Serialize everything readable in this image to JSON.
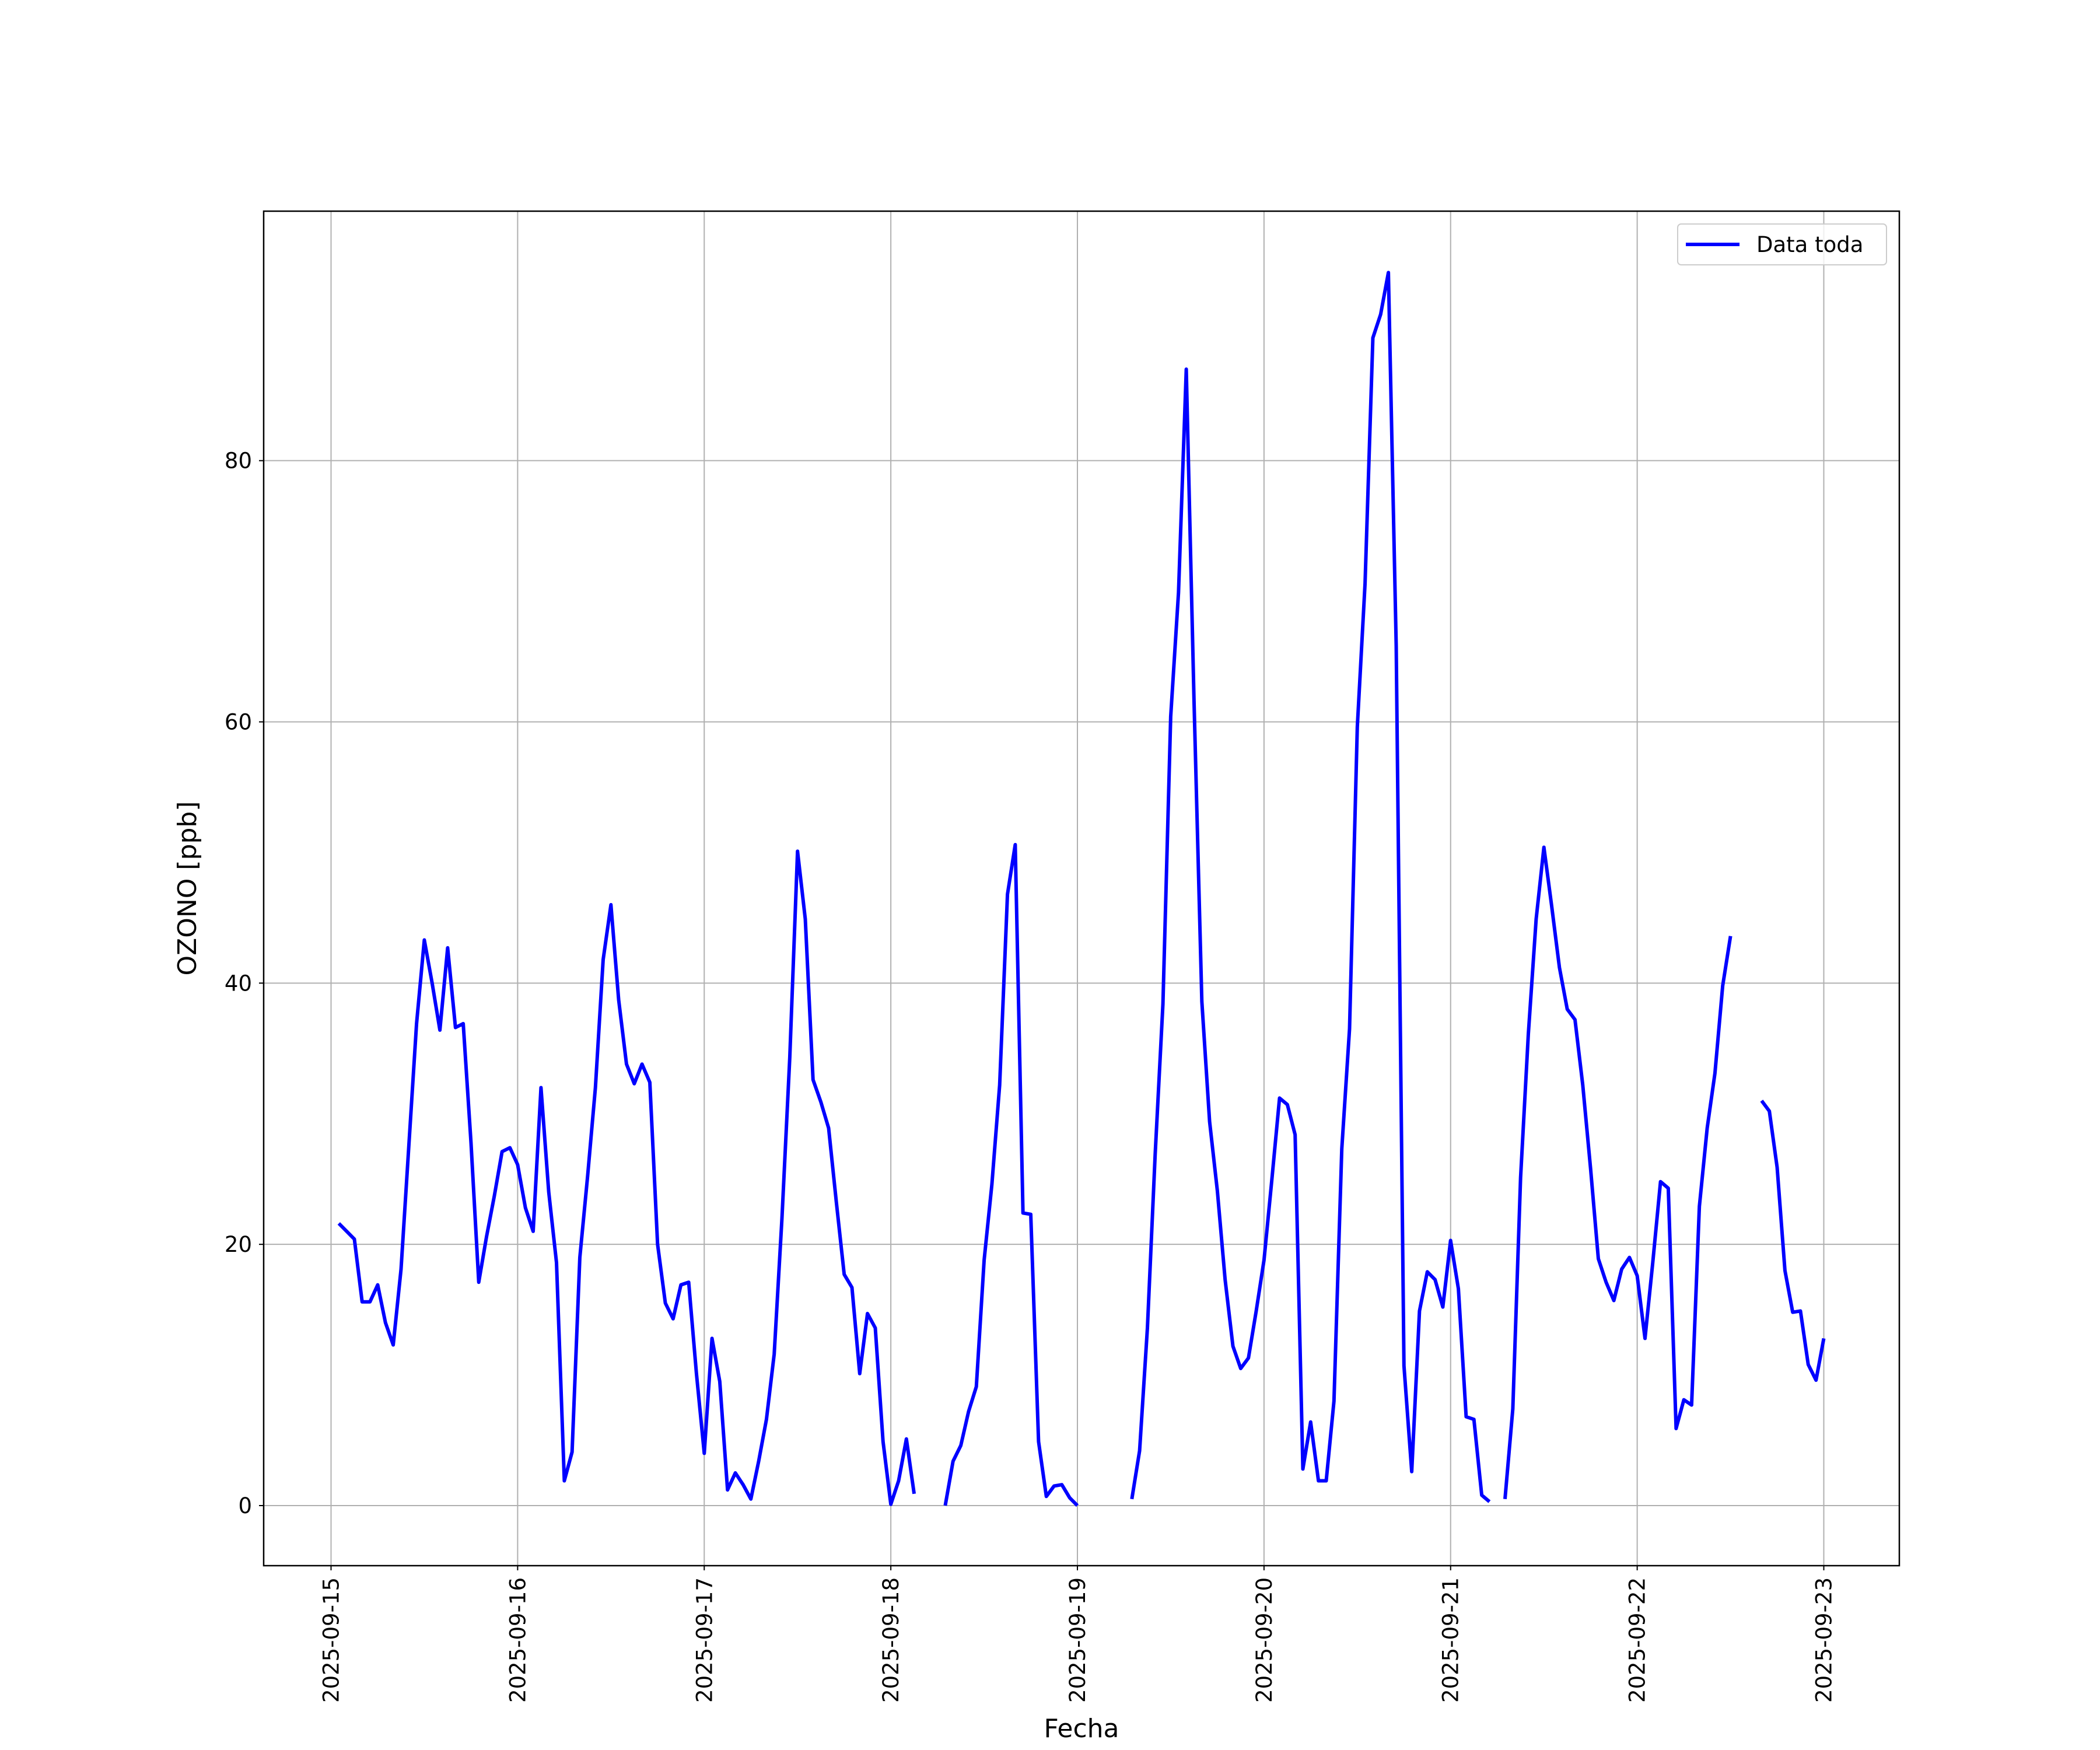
{
  "chart_data": {
    "type": "line",
    "xlabel": "Fecha",
    "ylabel": "OZONO [ppb]",
    "grid": true,
    "legend": "upper right",
    "xlim": [
      "2025-09-14 15:20",
      "2025-09-23 09:43"
    ],
    "xticks": [
      "2025-09-15",
      "2025-09-16",
      "2025-09-17",
      "2025-09-18",
      "2025-09-19",
      "2025-09-20",
      "2025-09-21",
      "2025-09-22",
      "2025-09-23"
    ],
    "ylim": [
      -4.6,
      99.1
    ],
    "yticks": [
      0,
      20,
      40,
      60,
      80
    ],
    "x": [
      "2025-09-15 01:00",
      "2025-09-15 02:00",
      "2025-09-15 03:00",
      "2025-09-15 04:00",
      "2025-09-15 05:00",
      "2025-09-15 06:00",
      "2025-09-15 07:00",
      "2025-09-15 08:00",
      "2025-09-15 09:00",
      "2025-09-15 10:00",
      "2025-09-15 11:00",
      "2025-09-15 12:00",
      "2025-09-15 13:00",
      "2025-09-15 14:00",
      "2025-09-15 15:00",
      "2025-09-15 16:00",
      "2025-09-15 17:00",
      "2025-09-15 18:00",
      "2025-09-15 19:00",
      "2025-09-15 20:00",
      "2025-09-15 21:00",
      "2025-09-15 22:00",
      "2025-09-15 23:00",
      "2025-09-16 00:00",
      "2025-09-16 01:00",
      "2025-09-16 02:00",
      "2025-09-16 03:00",
      "2025-09-16 04:00",
      "2025-09-16 05:00",
      "2025-09-16 06:00",
      "2025-09-16 07:00",
      "2025-09-16 08:00",
      "2025-09-16 09:00",
      "2025-09-16 10:00",
      "2025-09-16 11:00",
      "2025-09-16 12:00",
      "2025-09-16 13:00",
      "2025-09-16 14:00",
      "2025-09-16 15:00",
      "2025-09-16 16:00",
      "2025-09-16 17:00",
      "2025-09-16 18:00",
      "2025-09-16 19:00",
      "2025-09-16 20:00",
      "2025-09-16 21:00",
      "2025-09-16 22:00",
      "2025-09-16 23:00",
      "2025-09-17 00:00",
      "2025-09-17 01:00",
      "2025-09-17 02:00",
      "2025-09-17 03:00",
      "2025-09-17 04:00",
      "2025-09-17 05:00",
      "2025-09-17 06:00",
      "2025-09-17 07:00",
      "2025-09-17 08:00",
      "2025-09-17 09:00",
      "2025-09-17 10:00",
      "2025-09-17 11:00",
      "2025-09-17 12:00",
      "2025-09-17 13:00",
      "2025-09-17 14:00",
      "2025-09-17 15:00",
      "2025-09-17 16:00",
      "2025-09-17 17:00",
      "2025-09-17 18:00",
      "2025-09-17 19:00",
      "2025-09-17 20:00",
      "2025-09-17 21:00",
      "2025-09-17 22:00",
      "2025-09-17 23:00",
      "2025-09-18 00:00",
      "2025-09-18 01:00",
      "2025-09-18 02:00",
      "2025-09-18 03:00",
      "2025-09-18 04:00",
      "2025-09-18 05:00",
      "2025-09-18 06:00",
      "2025-09-18 07:00",
      "2025-09-18 08:00",
      "2025-09-18 09:00",
      "2025-09-18 10:00",
      "2025-09-18 11:00",
      "2025-09-18 12:00",
      "2025-09-18 13:00",
      "2025-09-18 14:00",
      "2025-09-18 15:00",
      "2025-09-18 16:00",
      "2025-09-18 17:00",
      "2025-09-18 18:00",
      "2025-09-18 19:00",
      "2025-09-18 20:00",
      "2025-09-18 21:00",
      "2025-09-18 22:00",
      "2025-09-18 23:00",
      "2025-09-19 00:00",
      "2025-09-19 01:00",
      "2025-09-19 02:00",
      "2025-09-19 03:00",
      "2025-09-19 04:00",
      "2025-09-19 05:00",
      "2025-09-19 06:00",
      "2025-09-19 07:00",
      "2025-09-19 08:00",
      "2025-09-19 09:00",
      "2025-09-19 10:00",
      "2025-09-19 11:00",
      "2025-09-19 12:00",
      "2025-09-19 13:00",
      "2025-09-19 14:00",
      "2025-09-19 15:00",
      "2025-09-19 16:00",
      "2025-09-19 17:00",
      "2025-09-19 18:00",
      "2025-09-19 19:00",
      "2025-09-19 20:00",
      "2025-09-19 21:00",
      "2025-09-19 22:00",
      "2025-09-19 23:00",
      "2025-09-20 00:00",
      "2025-09-20 01:00",
      "2025-09-20 02:00",
      "2025-09-20 03:00",
      "2025-09-20 04:00",
      "2025-09-20 05:00",
      "2025-09-20 06:00",
      "2025-09-20 07:00",
      "2025-09-20 08:00",
      "2025-09-20 09:00",
      "2025-09-20 10:00",
      "2025-09-20 11:00",
      "2025-09-20 12:00",
      "2025-09-20 13:00",
      "2025-09-20 14:00",
      "2025-09-20 15:00",
      "2025-09-20 16:00",
      "2025-09-20 17:00",
      "2025-09-20 18:00",
      "2025-09-20 19:00",
      "2025-09-20 20:00",
      "2025-09-20 21:00",
      "2025-09-20 22:00",
      "2025-09-20 23:00",
      "2025-09-21 00:00",
      "2025-09-21 01:00",
      "2025-09-21 02:00",
      "2025-09-21 03:00",
      "2025-09-21 04:00",
      "2025-09-21 05:00",
      "2025-09-21 06:00",
      "2025-09-21 07:00",
      "2025-09-21 08:00",
      "2025-09-21 09:00",
      "2025-09-21 10:00",
      "2025-09-21 11:00",
      "2025-09-21 12:00",
      "2025-09-21 13:00",
      "2025-09-21 14:00",
      "2025-09-21 15:00",
      "2025-09-21 16:00",
      "2025-09-21 17:00",
      "2025-09-21 18:00",
      "2025-09-21 19:00",
      "2025-09-21 20:00",
      "2025-09-21 21:00",
      "2025-09-21 22:00",
      "2025-09-21 23:00",
      "2025-09-22 00:00",
      "2025-09-22 01:00",
      "2025-09-22 02:00",
      "2025-09-22 03:00",
      "2025-09-22 04:00",
      "2025-09-22 05:00",
      "2025-09-22 06:00",
      "2025-09-22 07:00",
      "2025-09-22 08:00",
      "2025-09-22 09:00",
      "2025-09-22 10:00",
      "2025-09-22 11:00",
      "2025-09-22 12:00",
      "2025-09-22 13:00",
      "2025-09-22 14:00",
      "2025-09-22 15:00",
      "2025-09-22 16:00",
      "2025-09-22 17:00",
      "2025-09-22 18:00",
      "2025-09-22 19:00",
      "2025-09-22 20:00",
      "2025-09-22 21:00",
      "2025-09-22 22:00",
      "2025-09-22 23:00",
      "2025-09-23 00:00"
    ],
    "series": [
      {
        "name": "Data toda",
        "color": "#0000ff",
        "values": [
          21.6,
          21.0,
          20.4,
          15.6,
          15.6,
          16.9,
          14.0,
          12.3,
          18.1,
          27.5,
          36.9,
          43.3,
          40.0,
          36.4,
          42.7,
          36.6,
          36.9,
          27.8,
          17.1,
          20.6,
          23.7,
          27.1,
          27.4,
          26.1,
          22.8,
          21.0,
          32.0,
          24.0,
          18.6,
          1.9,
          4.1,
          19.0,
          25.2,
          32.0,
          41.8,
          46.0,
          38.7,
          33.8,
          32.3,
          33.8,
          32.4,
          20.0,
          15.5,
          14.3,
          16.9,
          17.1,
          10.1,
          4.0,
          12.8,
          9.5,
          1.2,
          2.5,
          1.6,
          0.5,
          3.4,
          6.6,
          11.6,
          22.0,
          34.3,
          50.1,
          44.9,
          32.6,
          30.9,
          28.9,
          23.2,
          17.7,
          16.7,
          10.1,
          14.7,
          13.6,
          4.9,
          0.1,
          1.9,
          5.1,
          0.9,
          null,
          null,
          null,
          0.0,
          3.4,
          4.6,
          7.2,
          9.1,
          18.8,
          24.6,
          32.2,
          46.8,
          50.6,
          22.4,
          22.3,
          4.9,
          0.7,
          1.5,
          1.6,
          0.6,
          0.0,
          null,
          null,
          null,
          null,
          null,
          null,
          0.5,
          4.2,
          13.6,
          26.9,
          38.4,
          60.4,
          69.9,
          87.0,
          61.6,
          38.6,
          29.4,
          24.1,
          17.3,
          12.2,
          10.5,
          11.3,
          14.9,
          18.8,
          24.9,
          31.2,
          30.7,
          28.4,
          2.8,
          6.4,
          1.9,
          1.9,
          8.0,
          27.3,
          36.5,
          59.6,
          70.6,
          89.4,
          91.2,
          94.4,
          65.8,
          10.7,
          2.6,
          14.9,
          17.9,
          17.3,
          15.2,
          20.3,
          16.6,
          6.8,
          6.6,
          0.8,
          0.3,
          null,
          0.5,
          7.4,
          25.1,
          36.1,
          44.9,
          50.4,
          45.9,
          41.2,
          38.0,
          37.2,
          32.2,
          25.8,
          18.9,
          17.1,
          15.7,
          18.1,
          19.0,
          17.6,
          12.8,
          18.6,
          24.8,
          24.3,
          5.9,
          8.1,
          7.7,
          22.9,
          28.9,
          33.1,
          39.8,
          43.6,
          null,
          null,
          null,
          31.0,
          30.2,
          25.9,
          18.0,
          14.8,
          14.9,
          10.8,
          9.6,
          12.8
        ]
      }
    ]
  }
}
